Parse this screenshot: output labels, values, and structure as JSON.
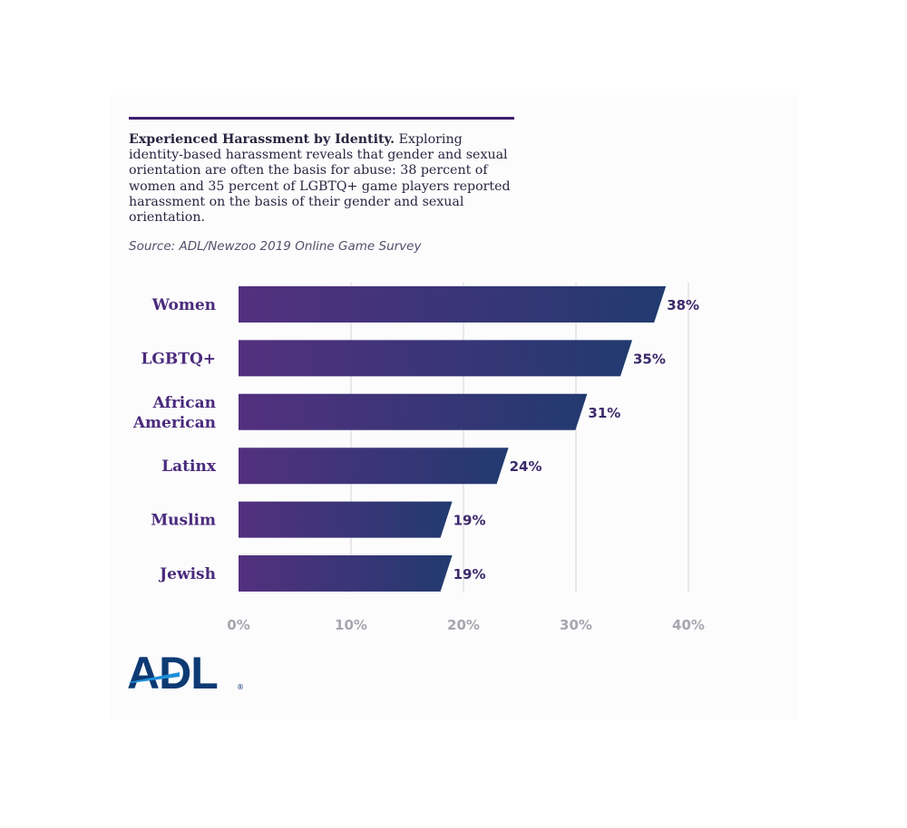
{
  "header": {
    "title_bold": "Experienced Harassment by Identity.",
    "description": " Exploring identity-based harassment reveals that gender and sexual orientation are often the basis for abuse: 38 percent of women and 35 percent of LGBTQ+ game players reported harassment on the basis of their gender and sexual orientation.",
    "source": "Source: ADL/Newzoo 2019 Online Game Survey"
  },
  "chart_data": {
    "type": "bar",
    "orientation": "horizontal",
    "categories": [
      [
        "Women"
      ],
      [
        "LGBTQ+"
      ],
      [
        "African",
        "American"
      ],
      [
        "Latinx"
      ],
      [
        "Muslim"
      ],
      [
        "Jewish"
      ]
    ],
    "values": [
      38,
      35,
      31,
      24,
      19,
      19
    ],
    "value_labels": [
      "38%",
      "35%",
      "31%",
      "24%",
      "19%",
      "19%"
    ],
    "x_ticks": [
      0,
      10,
      20,
      30,
      40
    ],
    "x_tick_labels": [
      "0%",
      "10%",
      "20%",
      "30%",
      "40%"
    ],
    "xlim": [
      0,
      40
    ],
    "grid": true,
    "colors": {
      "bar_start": "#53307f",
      "bar_end": "#223a6f",
      "grid": "#dcdce2"
    }
  },
  "logo": {
    "text": "ADL",
    "reg": "®",
    "color": "#0d3a73",
    "accent": "#1f8fd8"
  }
}
